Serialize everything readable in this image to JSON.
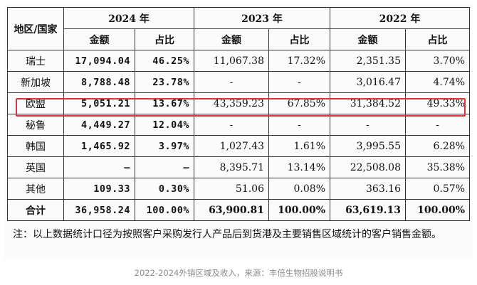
{
  "table": {
    "corner_header": "地区/国家",
    "years": [
      "2024 年",
      "2023 年",
      "2022 年"
    ],
    "sub_headers": [
      "金额",
      "占比",
      "金额",
      "占比",
      "金额",
      "占比"
    ],
    "rows": [
      {
        "region": "瑞士",
        "v": [
          "17,094.04",
          "46.25%",
          "11,067.38",
          "17.32%",
          "2,351.35",
          "3.70%"
        ]
      },
      {
        "region": "新加坡",
        "v": [
          "8,788.48",
          "23.78%",
          "-",
          "-",
          "3,016.47",
          "4.74%"
        ]
      },
      {
        "region": "欧盟",
        "v": [
          "5,051.21",
          "13.67%",
          "43,359.23",
          "67.85%",
          "31,384.52",
          "49.33%"
        ]
      },
      {
        "region": "秘鲁",
        "v": [
          "4,449.27",
          "12.04%",
          "-",
          "-",
          "-",
          "-"
        ]
      },
      {
        "region": "韩国",
        "v": [
          "1,465.92",
          "3.97%",
          "1,027.43",
          "1.61%",
          "3,995.55",
          "6.28%"
        ]
      },
      {
        "region": "英国",
        "v": [
          "–",
          "–",
          "8,395.71",
          "13.14%",
          "22,508.08",
          "35.38%"
        ]
      },
      {
        "region": "其他",
        "v": [
          "109.33",
          "0.30%",
          "51.06",
          "0.08%",
          "363.16",
          "0.57%"
        ]
      }
    ],
    "total": {
      "region": "合计",
      "v": [
        "36,958.24",
        "100.00%",
        "63,900.81",
        "100.00%",
        "63,619.13",
        "100.00%"
      ]
    }
  },
  "note": "注：以上数据统计口径为按照客户采购发行人产品后到货港及主要销售区域统计的客户销售金额。",
  "caption": "2022-2024外销区域及收入，来源：丰倍生物招股说明书",
  "colors": {
    "highlight": "#e0333b"
  }
}
